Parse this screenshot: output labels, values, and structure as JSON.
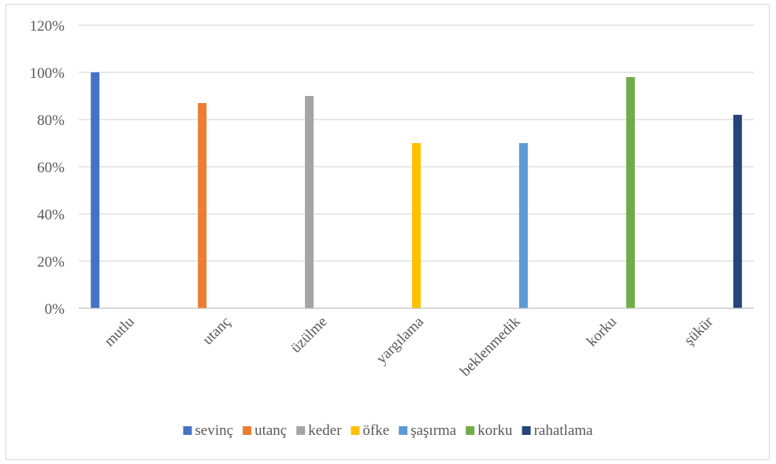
{
  "chart_data": {
    "type": "bar",
    "categories": [
      "mutlu",
      "utanç",
      "üzülme",
      "yargılama",
      "beklenmedik",
      "korku",
      "şükür"
    ],
    "series": [
      {
        "name": "sevinç",
        "color": "#4472c4",
        "values": [
          100,
          0,
          0,
          0,
          0,
          0,
          0
        ]
      },
      {
        "name": "utanç",
        "color": "#ed7d31",
        "values": [
          0,
          87,
          0,
          0,
          0,
          0,
          0
        ]
      },
      {
        "name": "keder",
        "color": "#a5a5a5",
        "values": [
          0,
          0,
          90,
          0,
          0,
          0,
          0
        ]
      },
      {
        "name": "öfke",
        "color": "#ffc000",
        "values": [
          0,
          0,
          0,
          70,
          0,
          0,
          0
        ]
      },
      {
        "name": "şaşırma",
        "color": "#5b9bd5",
        "values": [
          0,
          0,
          0,
          0,
          70,
          0,
          0
        ]
      },
      {
        "name": "korku",
        "color": "#70ad47",
        "values": [
          0,
          0,
          0,
          0,
          0,
          98,
          0
        ]
      },
      {
        "name": "rahatlama",
        "color": "#264478",
        "values": [
          0,
          0,
          0,
          0,
          0,
          0,
          82
        ]
      }
    ],
    "yticks": [
      "0%",
      "20%",
      "40%",
      "60%",
      "80%",
      "100%",
      "120%"
    ],
    "ylim": [
      0,
      120
    ],
    "grid": true,
    "legend_position": "bottom"
  }
}
